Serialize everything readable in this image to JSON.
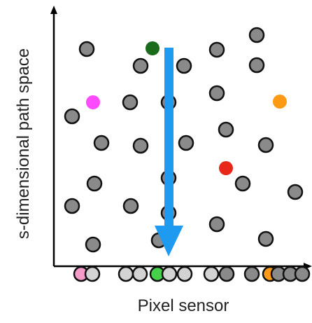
{
  "labels": {
    "y_axis": "s-dimensional path space",
    "x_axis": "Pixel sensor"
  },
  "colors": {
    "axis": "#000000",
    "sample_gray": "#8a8a8a",
    "sample_outline": "#111111",
    "sensor_gray": "#d3d3d3",
    "arrow": "#1e9bf0",
    "green": "#1a6b1a",
    "green_light": "#45d24a",
    "magenta": "#ff4bff",
    "pink_light": "#f49bc8",
    "orange": "#ff9a14",
    "red": "#e8261a"
  }
}
